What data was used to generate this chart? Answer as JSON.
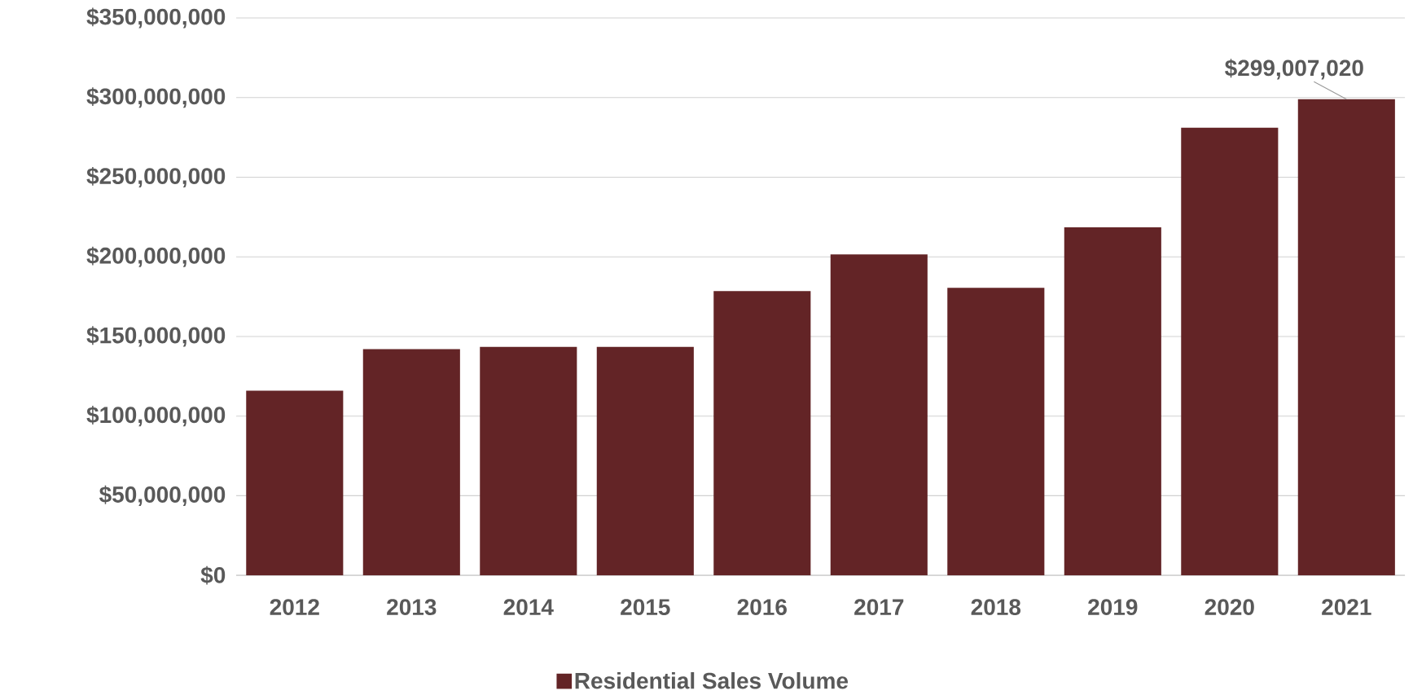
{
  "chart_data": {
    "type": "bar",
    "categories": [
      "2012",
      "2013",
      "2014",
      "2015",
      "2016",
      "2017",
      "2018",
      "2019",
      "2020",
      "2021"
    ],
    "series": [
      {
        "name": "Residential Sales Volume",
        "color": "#632426",
        "values": [
          116000000,
          142000000,
          143500000,
          143500000,
          178500000,
          201500000,
          180500000,
          218500000,
          281000000,
          299007020
        ]
      }
    ],
    "ylim": [
      0,
      350000000
    ],
    "yticks": [
      {
        "value": 0,
        "label": "$0"
      },
      {
        "value": 50000000,
        "label": "$50,000,000"
      },
      {
        "value": 100000000,
        "label": "$100,000,000"
      },
      {
        "value": 150000000,
        "label": "$150,000,000"
      },
      {
        "value": 200000000,
        "label": "$200,000,000"
      },
      {
        "value": 250000000,
        "label": "$250,000,000"
      },
      {
        "value": 300000000,
        "label": "$300,000,000"
      },
      {
        "value": 350000000,
        "label": "$350,000,000"
      }
    ],
    "grid": "y",
    "legend": "bottom",
    "annotations": [
      {
        "text": "$299,007,020",
        "x": "2021",
        "y": 299007020
      }
    ]
  }
}
